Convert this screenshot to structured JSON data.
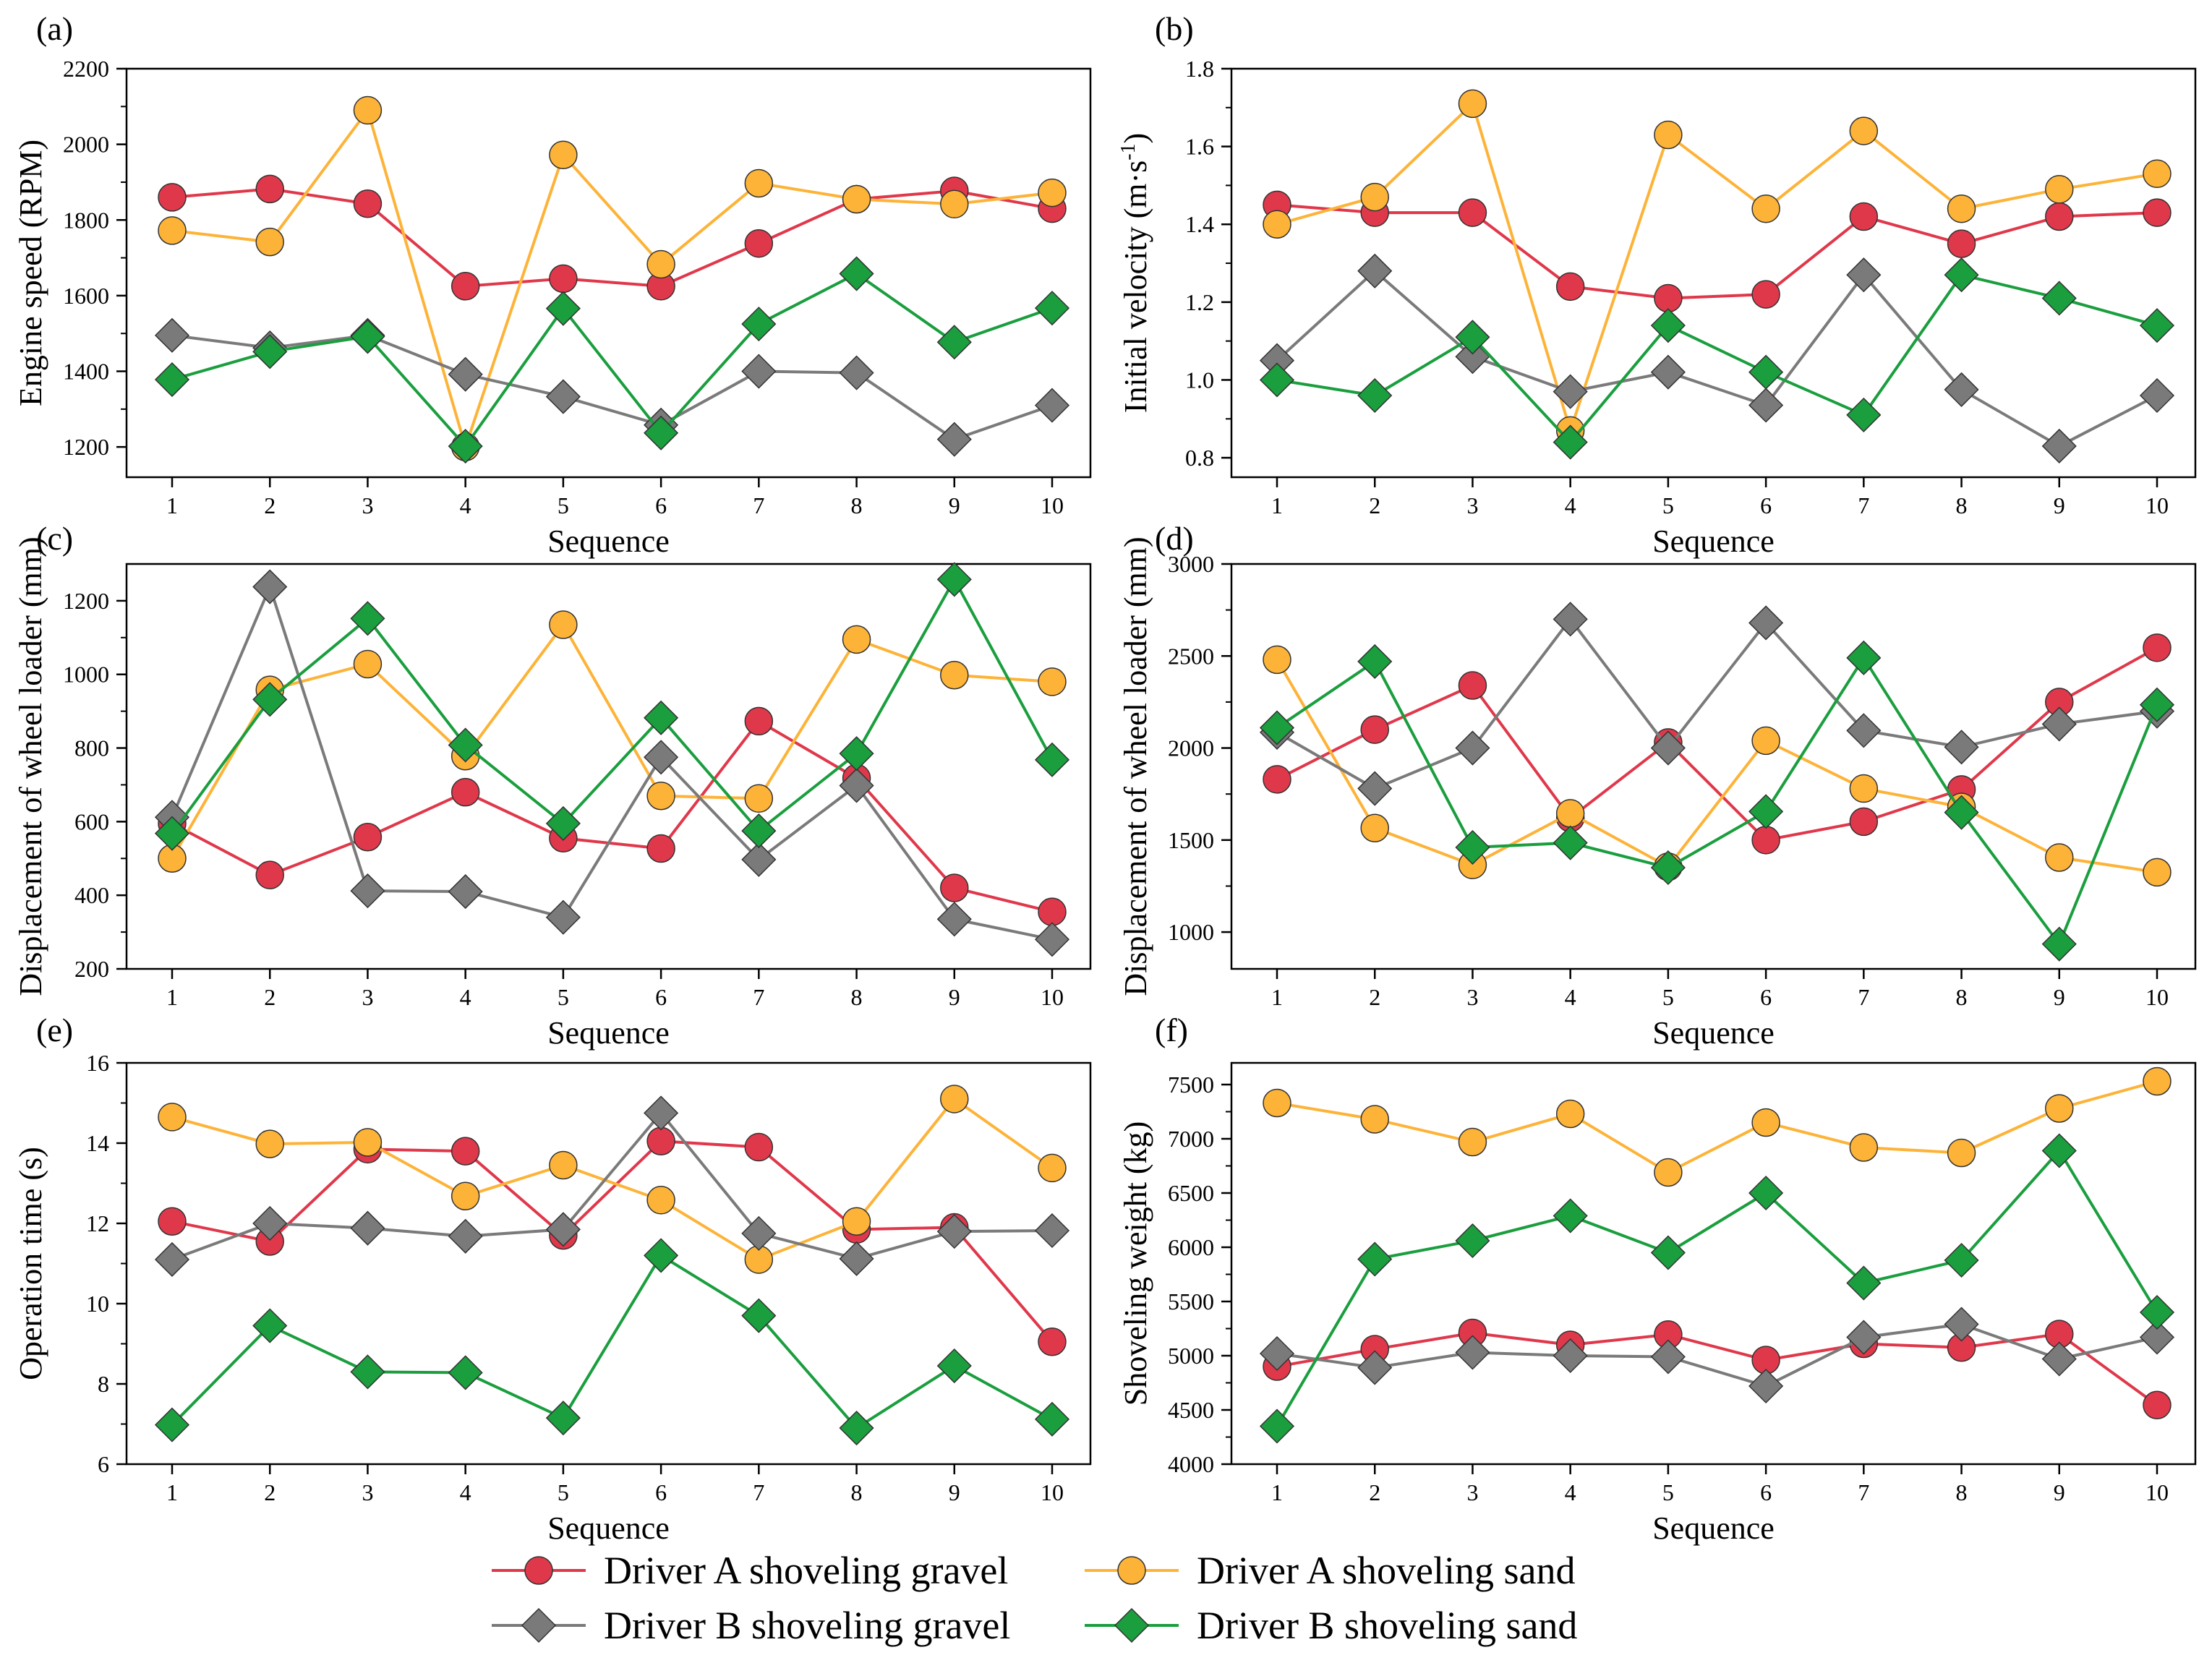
{
  "colors": {
    "driver_a_gravel": "#E0384B",
    "driver_a_sand": "#FDB338",
    "driver_b_gravel": "#7A7A7A",
    "driver_b_sand": "#1A9E3E",
    "axis": "#000000"
  },
  "legend": {
    "items": [
      {
        "label": "Driver A shoveling gravel",
        "marker": "circle",
        "color": "#E0384B"
      },
      {
        "label": "Driver A shoveling sand",
        "marker": "circle",
        "color": "#FDB338"
      },
      {
        "label": "Driver B shoveling gravel",
        "marker": "diamond",
        "color": "#7A7A7A"
      },
      {
        "label": "Driver B shoveling sand",
        "marker": "diamond",
        "color": "#1A9E3E"
      }
    ]
  },
  "chart_data": [
    {
      "type": "line",
      "panel_label": "(a)",
      "xlabel": "Sequence",
      "ylabel": "Engine speed (RPM)",
      "x": [
        1,
        2,
        3,
        4,
        5,
        6,
        7,
        8,
        9,
        10
      ],
      "xticks": [
        "1",
        "2",
        "3",
        "4",
        "5",
        "6",
        "7",
        "8",
        "9",
        "10"
      ],
      "ylim": [
        1120,
        2200
      ],
      "yticks": [
        1200,
        1400,
        1600,
        1800,
        2000,
        2200
      ],
      "yticklabels": [
        "1200",
        "1400",
        "1600",
        "1800",
        "2000",
        "2200"
      ],
      "series": [
        {
          "name": "Driver A shoveling gravel",
          "values": [
            1860,
            1882,
            1843,
            1625,
            1645,
            1625,
            1738,
            1855,
            1877,
            1830
          ]
        },
        {
          "name": "Driver A shoveling sand",
          "values": [
            1772,
            1742,
            2090,
            1200,
            1972,
            1683,
            1897,
            1855,
            1842,
            1872
          ]
        },
        {
          "name": "Driver B shoveling gravel",
          "values": [
            1495,
            1462,
            1495,
            1392,
            1333,
            1258,
            1400,
            1396,
            1220,
            1310
          ]
        },
        {
          "name": "Driver B shoveling sand",
          "values": [
            1378,
            1452,
            1492,
            1202,
            1566,
            1237,
            1525,
            1658,
            1477,
            1567
          ]
        }
      ]
    },
    {
      "type": "line",
      "panel_label": "(b)",
      "xlabel": "Sequence",
      "ylabel": "Initial velocity (m·s",
      "ylabel_sup": "-1",
      "ylabel_tail": ")",
      "x": [
        1,
        2,
        3,
        4,
        5,
        6,
        7,
        8,
        9,
        10
      ],
      "xticks": [
        "1",
        "2",
        "3",
        "4",
        "5",
        "6",
        "7",
        "8",
        "9",
        "10"
      ],
      "ylim": [
        0.75,
        1.8
      ],
      "yticks": [
        0.8,
        1.0,
        1.2,
        1.4,
        1.6,
        1.8
      ],
      "yticklabels": [
        "0.8",
        "1.0",
        "1.2",
        "1.4",
        "1.6",
        "1.8"
      ],
      "series": [
        {
          "name": "Driver A shoveling gravel",
          "values": [
            1.45,
            1.43,
            1.43,
            1.24,
            1.21,
            1.22,
            1.42,
            1.35,
            1.42,
            1.43
          ]
        },
        {
          "name": "Driver A shoveling sand",
          "values": [
            1.4,
            1.47,
            1.71,
            0.87,
            1.63,
            1.44,
            1.64,
            1.44,
            1.49,
            1.53
          ]
        },
        {
          "name": "Driver B shoveling gravel",
          "values": [
            1.05,
            1.28,
            1.06,
            0.97,
            1.02,
            0.935,
            1.27,
            0.975,
            0.83,
            0.96
          ]
        },
        {
          "name": "Driver B shoveling sand",
          "values": [
            1.0,
            0.96,
            1.11,
            0.84,
            1.14,
            1.02,
            0.91,
            1.27,
            1.21,
            1.14
          ]
        }
      ]
    },
    {
      "type": "line",
      "panel_label": "(c)",
      "xlabel": "Sequence",
      "ylabel": "Displacement of wheel loader (mm)",
      "x": [
        1,
        2,
        3,
        4,
        5,
        6,
        7,
        8,
        9,
        10
      ],
      "xticks": [
        "1",
        "2",
        "3",
        "4",
        "5",
        "6",
        "7",
        "8",
        "9",
        "10"
      ],
      "ylim": [
        200,
        1300
      ],
      "yticks": [
        200,
        400,
        600,
        800,
        1000,
        1200
      ],
      "yticklabels": [
        "200",
        "400",
        "600",
        "800",
        "1000",
        "1200"
      ],
      "series": [
        {
          "name": "Driver A shoveling gravel",
          "values": [
            595,
            455,
            558,
            680,
            555,
            527,
            873,
            718,
            420,
            355
          ]
        },
        {
          "name": "Driver A shoveling sand",
          "values": [
            500,
            958,
            1028,
            778,
            1135,
            670,
            663,
            1095,
            998,
            980
          ]
        },
        {
          "name": "Driver B shoveling gravel",
          "values": [
            612,
            1238,
            412,
            410,
            340,
            775,
            497,
            698,
            335,
            280
          ]
        },
        {
          "name": "Driver B shoveling sand",
          "values": [
            568,
            932,
            1152,
            808,
            595,
            882,
            575,
            785,
            1258,
            768
          ]
        }
      ]
    },
    {
      "type": "line",
      "panel_label": "(d)",
      "xlabel": "Sequence",
      "ylabel": "Displacement of wheel loader (mm)",
      "x": [
        1,
        2,
        3,
        4,
        5,
        6,
        7,
        8,
        9,
        10
      ],
      "xticks": [
        "1",
        "2",
        "3",
        "4",
        "5",
        "6",
        "7",
        "8",
        "9",
        "10"
      ],
      "ylim": [
        800,
        3000
      ],
      "yticks": [
        1000,
        1500,
        2000,
        2500,
        3000
      ],
      "yticklabels": [
        "1000",
        "1500",
        "2000",
        "2500",
        "3000"
      ],
      "series": [
        {
          "name": "Driver A shoveling gravel",
          "values": [
            1830,
            2100,
            2340,
            1620,
            2030,
            1500,
            1600,
            1775,
            2250,
            2545
          ]
        },
        {
          "name": "Driver A shoveling sand",
          "values": [
            2480,
            1565,
            1365,
            1645,
            1355,
            2040,
            1780,
            1680,
            1405,
            1325
          ]
        },
        {
          "name": "Driver B shoveling gravel",
          "values": [
            2085,
            1780,
            2000,
            2700,
            2000,
            2680,
            2095,
            2005,
            2130,
            2200
          ]
        },
        {
          "name": "Driver B shoveling sand",
          "values": [
            2110,
            2470,
            1460,
            1485,
            1350,
            1655,
            2490,
            1650,
            935,
            2235
          ]
        }
      ]
    },
    {
      "type": "line",
      "panel_label": "(e)",
      "xlabel": "Sequence",
      "ylabel": "Operation time (s)",
      "x": [
        1,
        2,
        3,
        4,
        5,
        6,
        7,
        8,
        9,
        10
      ],
      "xticks": [
        "1",
        "2",
        "3",
        "4",
        "5",
        "6",
        "7",
        "8",
        "9",
        "10"
      ],
      "ylim": [
        6,
        16
      ],
      "yticks": [
        6,
        8,
        10,
        12,
        14,
        16
      ],
      "yticklabels": [
        "6",
        "8",
        "10",
        "12",
        "14",
        "16"
      ],
      "series": [
        {
          "name": "Driver A shoveling gravel",
          "values": [
            12.05,
            11.55,
            13.85,
            13.8,
            11.7,
            14.05,
            13.9,
            11.85,
            11.9,
            9.05
          ]
        },
        {
          "name": "Driver A shoveling sand",
          "values": [
            14.65,
            13.98,
            14.02,
            12.68,
            13.45,
            12.58,
            11.1,
            12.05,
            15.1,
            13.38
          ]
        },
        {
          "name": "Driver B shoveling gravel",
          "values": [
            11.1,
            12.0,
            11.88,
            11.68,
            11.85,
            14.75,
            11.75,
            11.12,
            11.8,
            11.82
          ]
        },
        {
          "name": "Driver B shoveling sand",
          "values": [
            6.98,
            9.45,
            8.3,
            8.28,
            7.15,
            11.2,
            9.7,
            6.9,
            8.45,
            7.12
          ]
        }
      ]
    },
    {
      "type": "line",
      "panel_label": "(f)",
      "xlabel": "Sequence",
      "ylabel": "Shoveling weight (kg)",
      "x": [
        1,
        2,
        3,
        4,
        5,
        6,
        7,
        8,
        9,
        10
      ],
      "xticks": [
        "1",
        "2",
        "3",
        "4",
        "5",
        "6",
        "7",
        "8",
        "9",
        "10"
      ],
      "ylim": [
        4000,
        7700
      ],
      "yticks": [
        4000,
        4500,
        5000,
        5500,
        6000,
        6500,
        7000,
        7500
      ],
      "yticklabels": [
        "4000",
        "4500",
        "5000",
        "5500",
        "6000",
        "6500",
        "7000",
        "7500"
      ],
      "series": [
        {
          "name": "Driver A shoveling gravel",
          "values": [
            4900,
            5060,
            5210,
            5100,
            5195,
            4960,
            5110,
            5075,
            5200,
            4545
          ]
        },
        {
          "name": "Driver A shoveling sand",
          "values": [
            7330,
            7180,
            6970,
            7230,
            6690,
            7150,
            6920,
            6870,
            7280,
            7530
          ]
        },
        {
          "name": "Driver B shoveling gravel",
          "values": [
            5020,
            4890,
            5030,
            5000,
            4990,
            4720,
            5170,
            5290,
            4970,
            5170
          ]
        },
        {
          "name": "Driver B shoveling sand",
          "values": [
            4350,
            5890,
            6060,
            6290,
            5950,
            6500,
            5670,
            5880,
            6890,
            5400
          ]
        }
      ]
    }
  ]
}
